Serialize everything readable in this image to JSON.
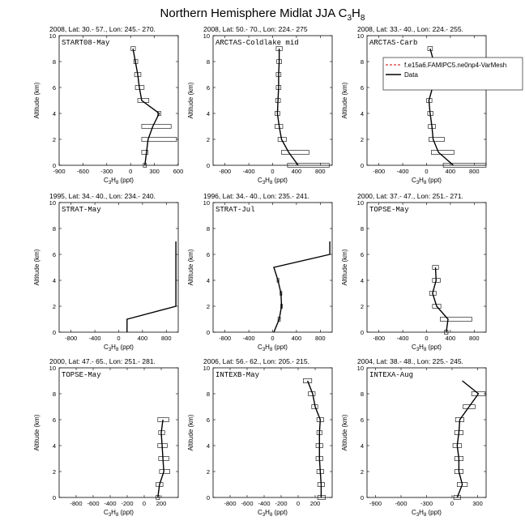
{
  "figure": {
    "title_main": "Northern Hemisphere Midlat JJA C",
    "title_sub1": "3",
    "title_mid": "H",
    "title_sub2": "8"
  },
  "chart_data": [
    {
      "type": "line",
      "header": "2008, Lat: 30.- 57., Lon: 245.- 270.",
      "label": "START08-May",
      "xlabel": "C3H8 (ppt)",
      "ylabel": "Altitude (km)",
      "xlim": [
        -900,
        600
      ],
      "ylim": [
        0,
        10
      ],
      "xticks": [
        -900,
        -600,
        -300,
        0,
        300,
        600
      ],
      "yticks": [
        0,
        2,
        4,
        6,
        8,
        10
      ],
      "x_tick_labels": [
        "-900",
        "-600",
        "-300",
        "0",
        "300",
        "600"
      ],
      "y_tick_labels": [
        "0",
        "2",
        "4",
        "6",
        "8",
        "10"
      ],
      "series": [
        {
          "values": [
            {
              "alt": 9.0,
              "val": 30,
              "min": 5,
              "max": 60
            },
            {
              "alt": 8.0,
              "val": 60,
              "min": 40,
              "max": 90
            },
            {
              "alt": 7.0,
              "val": 90,
              "min": 50,
              "max": 130
            },
            {
              "alt": 6.0,
              "val": 110,
              "min": 60,
              "max": 170
            },
            {
              "alt": 5.0,
              "val": 140,
              "min": 90,
              "max": 230
            },
            {
              "alt": 4.0,
              "val": 360,
              "min": 340,
              "max": 380
            },
            {
              "alt": 3.0,
              "val": 280,
              "min": 140,
              "max": 510
            },
            {
              "alt": 2.0,
              "val": 220,
              "min": 140,
              "max": 580
            },
            {
              "alt": 1.0,
              "val": 200,
              "min": 140,
              "max": 220
            },
            {
              "alt": 0.0,
              "val": 180,
              "min": 160,
              "max": 200
            }
          ]
        }
      ]
    },
    {
      "type": "line",
      "header": "2008, Lat: 50.- 70., Lon: 224.- 275",
      "label": "ARCTAS-Coldlake mid",
      "xlabel": "C3H8 (ppt)",
      "ylabel": "Altitude (km)",
      "xlim": [
        -1000,
        1000
      ],
      "ylim": [
        0,
        10
      ],
      "xticks": [
        -800,
        -400,
        0,
        400,
        800
      ],
      "yticks": [
        0,
        2,
        4,
        6,
        8,
        10
      ],
      "x_tick_labels": [
        "-800",
        "-400",
        "0",
        "400",
        "800"
      ],
      "y_tick_labels": [
        "0",
        "2",
        "4",
        "6",
        "8",
        "10"
      ],
      "series": [
        {
          "values": [
            {
              "alt": 9.0,
              "val": 110,
              "min": 60,
              "max": 160
            },
            {
              "alt": 8.0,
              "val": 110,
              "min": 70,
              "max": 150
            },
            {
              "alt": 7.0,
              "val": 100,
              "min": 60,
              "max": 140
            },
            {
              "alt": 6.0,
              "val": 100,
              "min": 60,
              "max": 140
            },
            {
              "alt": 5.0,
              "val": 90,
              "min": 50,
              "max": 130
            },
            {
              "alt": 4.0,
              "val": 80,
              "min": 40,
              "max": 120
            },
            {
              "alt": 3.0,
              "val": 110,
              "min": 40,
              "max": 170
            },
            {
              "alt": 2.0,
              "val": 150,
              "min": 90,
              "max": 230
            },
            {
              "alt": 1.0,
              "val": 270,
              "min": 150,
              "max": 610
            },
            {
              "alt": 0.0,
              "val": 430,
              "min": 250,
              "max": 950
            }
          ]
        }
      ]
    },
    {
      "type": "line",
      "header": "2008, Lat: 33.- 40., Lon: 224.- 255.",
      "label": "ARCTAS-Carb",
      "xlabel": "C3H8 (ppt)",
      "ylabel": "Altitude (km)",
      "xlim": [
        -1000,
        1000
      ],
      "ylim": [
        0,
        10
      ],
      "xticks": [
        -800,
        -400,
        0,
        400,
        800
      ],
      "yticks": [
        0,
        2,
        4,
        6,
        8,
        10
      ],
      "x_tick_labels": [
        "-800",
        "-400",
        "0",
        "400",
        "800"
      ],
      "y_tick_labels": [
        "0",
        "2",
        "4",
        "6",
        "8",
        "10"
      ],
      "legend": [
        "f.e15a6.FAMIPC5.ne0np4-VarMesh",
        "Data"
      ],
      "series": [
        {
          "values": [
            {
              "alt": 9.0,
              "val": 60,
              "min": 20,
              "max": 100
            },
            {
              "alt": 8.0,
              "val": 120,
              "min": 80,
              "max": 170
            },
            {
              "alt": 7.0,
              "val": 140,
              "min": 40,
              "max": 220
            },
            {
              "alt": 6.0,
              "val": 100,
              "min": 40,
              "max": 180
            },
            {
              "alt": 5.0,
              "val": 40,
              "min": 0,
              "max": 90
            },
            {
              "alt": 4.0,
              "val": 60,
              "min": 20,
              "max": 110
            },
            {
              "alt": 3.0,
              "val": 90,
              "min": 30,
              "max": 150
            },
            {
              "alt": 2.0,
              "val": 110,
              "min": 40,
              "max": 300
            },
            {
              "alt": 1.0,
              "val": 200,
              "min": 80,
              "max": 460
            },
            {
              "alt": 0.0,
              "val": 450,
              "min": 280,
              "max": 1000
            }
          ]
        }
      ]
    },
    {
      "type": "line",
      "header": "1995, Lat: 34.- 40., Lon: 234.- 240.",
      "label": "STRAT-May",
      "xlabel": "C3H8 (ppt)",
      "ylabel": "Altitude (km)",
      "xlim": [
        -1000,
        1000
      ],
      "ylim": [
        0,
        10
      ],
      "xticks": [
        -800,
        -400,
        0,
        400,
        800
      ],
      "yticks": [
        0,
        2,
        4,
        6,
        8,
        10
      ],
      "x_tick_labels": [
        "-800",
        "-400",
        "0",
        "400",
        "800"
      ],
      "y_tick_labels": [
        "0",
        "2",
        "4",
        "6",
        "8",
        "10"
      ],
      "series": [
        {
          "values": [
            {
              "alt": 7.0,
              "val": 960
            },
            {
              "alt": 2.0,
              "val": 960
            },
            {
              "alt": 1.0,
              "val": 140
            },
            {
              "alt": 0.0,
              "val": 140
            }
          ]
        }
      ]
    },
    {
      "type": "line",
      "header": "1996, Lat: 34.- 40., Lon: 235.- 241.",
      "label": "STRAT-Jul",
      "xlabel": "C3H8 (ppt)",
      "ylabel": "Altitude (km)",
      "xlim": [
        -1000,
        1000
      ],
      "ylim": [
        0,
        10
      ],
      "xticks": [
        -800,
        -400,
        0,
        400,
        800
      ],
      "yticks": [
        0,
        2,
        4,
        6,
        8,
        10
      ],
      "x_tick_labels": [
        "-800",
        "-400",
        "0",
        "400",
        "800"
      ],
      "y_tick_labels": [
        "0",
        "2",
        "4",
        "6",
        "8",
        "10"
      ],
      "series": [
        {
          "values": [
            {
              "alt": 7.0,
              "val": 960
            },
            {
              "alt": 6.0,
              "val": 960
            },
            {
              "alt": 5.0,
              "val": 20
            },
            {
              "alt": 4.0,
              "val": 90,
              "min": 75,
              "max": 105
            },
            {
              "alt": 3.0,
              "val": 140,
              "min": 125,
              "max": 155
            },
            {
              "alt": 2.0,
              "val": 150,
              "min": 135,
              "max": 165
            },
            {
              "alt": 1.0,
              "val": 110,
              "min": 90,
              "max": 130
            },
            {
              "alt": 0.0,
              "val": 20
            }
          ]
        }
      ]
    },
    {
      "type": "line",
      "header": "2000, Lat: 37.- 47., Lon: 251.- 271.",
      "label": "TOPSE-May",
      "xlabel": "C3H8 (ppt)",
      "ylabel": "Altitude (km)",
      "xlim": [
        -1000,
        1000
      ],
      "ylim": [
        0,
        10
      ],
      "xticks": [
        -800,
        -400,
        0,
        400,
        800
      ],
      "yticks": [
        0,
        2,
        4,
        6,
        8,
        10
      ],
      "x_tick_labels": [
        "-800",
        "-400",
        "0",
        "400",
        "800"
      ],
      "y_tick_labels": [
        "0",
        "2",
        "4",
        "6",
        "8",
        "10"
      ],
      "series": [
        {
          "values": [
            {
              "alt": 5.0,
              "val": 150,
              "min": 100,
              "max": 200
            },
            {
              "alt": 4.0,
              "val": 160,
              "min": 100,
              "max": 230
            },
            {
              "alt": 3.0,
              "val": 100,
              "min": 50,
              "max": 160
            },
            {
              "alt": 2.0,
              "val": 170,
              "min": 100,
              "max": 240
            },
            {
              "alt": 1.0,
              "val": 360,
              "min": 230,
              "max": 760
            },
            {
              "alt": 0.0,
              "val": 330,
              "min": 300,
              "max": 360
            }
          ]
        }
      ]
    },
    {
      "type": "line",
      "header": "2000, Lat: 47.- 65., Lon: 251.- 281.",
      "label": "TOPSE-May",
      "xlabel": "C3H8 (ppt)",
      "ylabel": "Altitude (km)",
      "xlim": [
        -1000,
        400
      ],
      "ylim": [
        0,
        10
      ],
      "xticks": [
        -800,
        -600,
        -400,
        -200,
        0,
        200
      ],
      "yticks": [
        0,
        2,
        4,
        6,
        8,
        10
      ],
      "x_tick_labels": [
        "-800",
        "-600",
        "-400",
        "-200",
        "0",
        "200"
      ],
      "y_tick_labels": [
        "0",
        "2",
        "4",
        "6",
        "8",
        "10"
      ],
      "series": [
        {
          "values": [
            {
              "alt": 6.0,
              "val": 220,
              "min": 160,
              "max": 290
            },
            {
              "alt": 5.0,
              "val": 200,
              "min": 170,
              "max": 240
            },
            {
              "alt": 4.0,
              "val": 210,
              "min": 160,
              "max": 270
            },
            {
              "alt": 3.0,
              "val": 220,
              "min": 170,
              "max": 290
            },
            {
              "alt": 2.0,
              "val": 230,
              "min": 180,
              "max": 300
            },
            {
              "alt": 1.0,
              "val": 180,
              "min": 140,
              "max": 220
            },
            {
              "alt": 0.0,
              "val": 160,
              "min": 140,
              "max": 180
            }
          ]
        }
      ]
    },
    {
      "type": "line",
      "header": "2006, Lat: 56.- 62., Lon: 205.- 215.",
      "label": "INTEXB-May",
      "xlabel": "C3H8 (ppt)",
      "ylabel": "Altitude (km)",
      "xlim": [
        -1000,
        400
      ],
      "ylim": [
        0,
        10
      ],
      "xticks": [
        -800,
        -600,
        -400,
        -200,
        0,
        200
      ],
      "yticks": [
        0,
        2,
        4,
        6,
        8,
        10
      ],
      "x_tick_labels": [
        "-800",
        "-600",
        "-400",
        "-200",
        "0",
        "200"
      ],
      "y_tick_labels": [
        "0",
        "2",
        "4",
        "6",
        "8",
        "10"
      ],
      "series": [
        {
          "values": [
            {
              "alt": 9.0,
              "val": 110,
              "min": 60,
              "max": 160
            },
            {
              "alt": 8.0,
              "val": 170,
              "min": 120,
              "max": 200
            },
            {
              "alt": 7.0,
              "val": 200,
              "min": 160,
              "max": 230
            },
            {
              "alt": 6.0,
              "val": 260,
              "min": 220,
              "max": 300
            },
            {
              "alt": 5.0,
              "val": 250,
              "min": 220,
              "max": 280
            },
            {
              "alt": 4.0,
              "val": 250,
              "min": 210,
              "max": 290
            },
            {
              "alt": 3.0,
              "val": 250,
              "min": 210,
              "max": 290
            },
            {
              "alt": 2.0,
              "val": 260,
              "min": 220,
              "max": 300
            },
            {
              "alt": 1.0,
              "val": 270,
              "min": 230,
              "max": 310
            },
            {
              "alt": 0.0,
              "val": 270,
              "min": 230,
              "max": 320
            }
          ]
        }
      ]
    },
    {
      "type": "line",
      "header": "2004, Lat: 38.- 48., Lon: 225.- 245.",
      "label": "INTEXA-Aug",
      "xlabel": "C3H8 (ppt)",
      "ylabel": "Altitude (km)",
      "xlim": [
        -1000,
        400
      ],
      "ylim": [
        0,
        10
      ],
      "xticks": [
        -900,
        -600,
        -300,
        0,
        300
      ],
      "yticks": [
        0,
        2,
        4,
        6,
        8,
        10
      ],
      "x_tick_labels": [
        "-900",
        "-600",
        "-300",
        "0",
        "300"
      ],
      "y_tick_labels": [
        "0",
        "2",
        "4",
        "6",
        "8",
        "10"
      ],
      "series": [
        {
          "values": [
            {
              "alt": 9.0,
              "val": 120
            },
            {
              "alt": 8.0,
              "val": 310,
              "min": 230,
              "max": 390
            },
            {
              "alt": 7.0,
              "val": 200,
              "min": 130,
              "max": 270
            },
            {
              "alt": 6.0,
              "val": 90,
              "min": 40,
              "max": 140
            },
            {
              "alt": 5.0,
              "val": 80,
              "min": 30,
              "max": 130
            },
            {
              "alt": 4.0,
              "val": 60,
              "min": 10,
              "max": 110
            },
            {
              "alt": 3.0,
              "val": 80,
              "min": 30,
              "max": 130
            },
            {
              "alt": 2.0,
              "val": 80,
              "min": 30,
              "max": 130
            },
            {
              "alt": 1.0,
              "val": 120,
              "min": 60,
              "max": 180
            },
            {
              "alt": 0.0,
              "val": 60,
              "min": 20,
              "max": 100
            }
          ]
        }
      ]
    }
  ],
  "colors": {
    "data_line": "#000000",
    "model_line": "#cc0000",
    "box": "#000000",
    "background": "#ffffff"
  }
}
